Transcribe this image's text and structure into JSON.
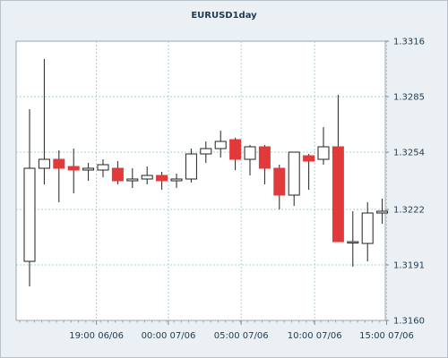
{
  "chart_data": {
    "type": "candlestick",
    "title": "EURUSD1day",
    "xlabel": "",
    "ylabel": "",
    "ylim": [
      1.316,
      1.3316
    ],
    "y_ticks": [
      "1.3316",
      "1.3285",
      "1.3254",
      "1.3222",
      "1.3191",
      "1.3160"
    ],
    "x_ticks": [
      {
        "label": "19:00 06/06",
        "index": 4.55
      },
      {
        "label": "00:00 07/06",
        "index": 9.45
      },
      {
        "label": "05:00 07/06",
        "index": 14.4
      },
      {
        "label": "10:00 07/06",
        "index": 19.4
      },
      {
        "label": "15:00 07/06",
        "index": 24.3
      }
    ],
    "grid": true,
    "up_color": "#ffffff",
    "down_color": "#e23a3a",
    "candles": [
      {
        "o": 1.3193,
        "h": 1.3278,
        "l": 1.3179,
        "c": 1.3245
      },
      {
        "o": 1.3245,
        "h": 1.3306,
        "l": 1.3236,
        "c": 1.325
      },
      {
        "o": 1.325,
        "h": 1.3255,
        "l": 1.3226,
        "c": 1.3245
      },
      {
        "o": 1.3246,
        "h": 1.3256,
        "l": 1.3231,
        "c": 1.3244
      },
      {
        "o": 1.3244,
        "h": 1.3248,
        "l": 1.3238,
        "c": 1.3245
      },
      {
        "o": 1.3244,
        "h": 1.325,
        "l": 1.324,
        "c": 1.3247
      },
      {
        "o": 1.3245,
        "h": 1.3249,
        "l": 1.3236,
        "c": 1.3238
      },
      {
        "o": 1.3238,
        "h": 1.3245,
        "l": 1.3234,
        "c": 1.3239
      },
      {
        "o": 1.3239,
        "h": 1.3246,
        "l": 1.3236,
        "c": 1.3241
      },
      {
        "o": 1.3241,
        "h": 1.3243,
        "l": 1.3233,
        "c": 1.3238
      },
      {
        "o": 1.3238,
        "h": 1.3242,
        "l": 1.3234,
        "c": 1.3239
      },
      {
        "o": 1.3239,
        "h": 1.3256,
        "l": 1.3237,
        "c": 1.3253
      },
      {
        "o": 1.3253,
        "h": 1.326,
        "l": 1.3248,
        "c": 1.3256
      },
      {
        "o": 1.3256,
        "h": 1.3266,
        "l": 1.3251,
        "c": 1.326
      },
      {
        "o": 1.3261,
        "h": 1.3262,
        "l": 1.3244,
        "c": 1.325
      },
      {
        "o": 1.325,
        "h": 1.3258,
        "l": 1.3241,
        "c": 1.3257
      },
      {
        "o": 1.3257,
        "h": 1.3258,
        "l": 1.3236,
        "c": 1.3245
      },
      {
        "o": 1.3245,
        "h": 1.3247,
        "l": 1.3222,
        "c": 1.323
      },
      {
        "o": 1.323,
        "h": 1.3254,
        "l": 1.3224,
        "c": 1.3254
      },
      {
        "o": 1.3252,
        "h": 1.3253,
        "l": 1.3233,
        "c": 1.3249
      },
      {
        "o": 1.325,
        "h": 1.3268,
        "l": 1.3247,
        "c": 1.3257
      },
      {
        "o": 1.3257,
        "h": 1.3286,
        "l": 1.3204,
        "c": 1.3204
      },
      {
        "o": 1.3204,
        "h": 1.3221,
        "l": 1.319,
        "c": 1.3204
      },
      {
        "o": 1.3203,
        "h": 1.3226,
        "l": 1.3193,
        "c": 1.322
      },
      {
        "o": 1.322,
        "h": 1.3228,
        "l": 1.3214,
        "c": 1.3221
      }
    ]
  }
}
